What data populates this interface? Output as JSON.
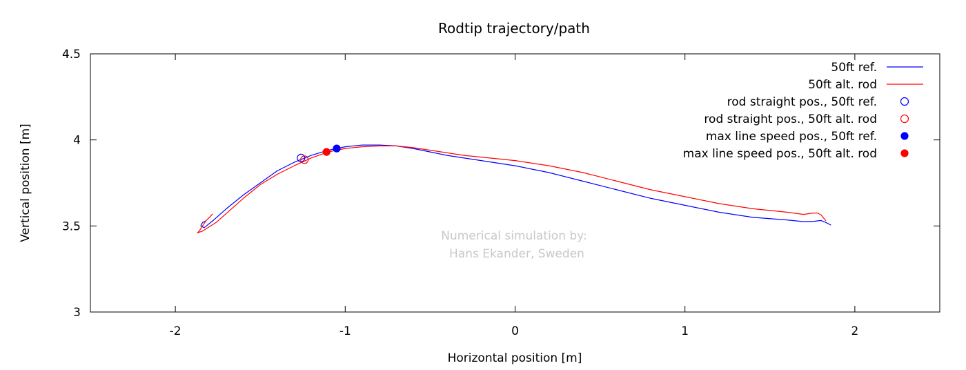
{
  "chart_data": {
    "type": "line",
    "title": "Rodtip trajectory/path",
    "xlabel": "Horizontal position [m]",
    "ylabel": "Vertical position [m]",
    "xlim": [
      -2.5,
      2.5
    ],
    "ylim": [
      3,
      4.5
    ],
    "xticks": [
      -2,
      -1,
      0,
      1,
      2
    ],
    "yticks": [
      3,
      3.5,
      4,
      4.5
    ],
    "xtick_labels": [
      "-2",
      "-1",
      "0",
      "1",
      "2"
    ],
    "ytick_labels": [
      "3",
      "3.5",
      "4",
      "4.5"
    ],
    "grid": false,
    "legend_position": "top-right",
    "watermark": [
      "Numerical simulation by:",
      "Hans Ekander, Sweden"
    ],
    "series": [
      {
        "name": "50ft ref.",
        "kind": "line",
        "color": "#0000ff",
        "points": [
          [
            -1.82,
            3.53
          ],
          [
            -1.84,
            3.52
          ],
          [
            -1.85,
            3.5
          ],
          [
            -1.83,
            3.49
          ],
          [
            -1.78,
            3.53
          ],
          [
            -1.7,
            3.6
          ],
          [
            -1.6,
            3.68
          ],
          [
            -1.5,
            3.75
          ],
          [
            -1.4,
            3.82
          ],
          [
            -1.3,
            3.87
          ],
          [
            -1.2,
            3.91
          ],
          [
            -1.1,
            3.94
          ],
          [
            -1.0,
            3.96
          ],
          [
            -0.9,
            3.97
          ],
          [
            -0.8,
            3.97
          ],
          [
            -0.7,
            3.965
          ],
          [
            -0.6,
            3.95
          ],
          [
            -0.5,
            3.93
          ],
          [
            -0.4,
            3.91
          ],
          [
            -0.2,
            3.88
          ],
          [
            0.0,
            3.85
          ],
          [
            0.2,
            3.81
          ],
          [
            0.4,
            3.76
          ],
          [
            0.6,
            3.71
          ],
          [
            0.8,
            3.66
          ],
          [
            1.0,
            3.62
          ],
          [
            1.2,
            3.58
          ],
          [
            1.4,
            3.55
          ],
          [
            1.6,
            3.535
          ],
          [
            1.7,
            3.525
          ],
          [
            1.76,
            3.527
          ],
          [
            1.8,
            3.532
          ],
          [
            1.83,
            3.52
          ],
          [
            1.86,
            3.505
          ]
        ]
      },
      {
        "name": "50ft alt. rod",
        "kind": "line",
        "color": "#ff0000",
        "points": [
          [
            -1.78,
            3.57
          ],
          [
            -1.82,
            3.53
          ],
          [
            -1.86,
            3.47
          ],
          [
            -1.87,
            3.46
          ],
          [
            -1.84,
            3.47
          ],
          [
            -1.76,
            3.52
          ],
          [
            -1.68,
            3.59
          ],
          [
            -1.6,
            3.66
          ],
          [
            -1.5,
            3.74
          ],
          [
            -1.4,
            3.8
          ],
          [
            -1.3,
            3.85
          ],
          [
            -1.2,
            3.895
          ],
          [
            -1.1,
            3.93
          ],
          [
            -1.0,
            3.95
          ],
          [
            -0.9,
            3.96
          ],
          [
            -0.8,
            3.965
          ],
          [
            -0.7,
            3.965
          ],
          [
            -0.6,
            3.955
          ],
          [
            -0.5,
            3.94
          ],
          [
            -0.3,
            3.91
          ],
          [
            -0.1,
            3.89
          ],
          [
            0.0,
            3.88
          ],
          [
            0.2,
            3.85
          ],
          [
            0.4,
            3.81
          ],
          [
            0.6,
            3.76
          ],
          [
            0.8,
            3.71
          ],
          [
            1.0,
            3.67
          ],
          [
            1.2,
            3.63
          ],
          [
            1.4,
            3.6
          ],
          [
            1.6,
            3.58
          ],
          [
            1.7,
            3.567
          ],
          [
            1.75,
            3.575
          ],
          [
            1.78,
            3.575
          ],
          [
            1.8,
            3.565
          ],
          [
            1.83,
            3.53
          ]
        ]
      },
      {
        "name": "rod straight pos., 50ft ref.",
        "kind": "marker",
        "marker": "open-circle",
        "color": "#0000ff",
        "points": [
          [
            -1.26,
            3.895
          ]
        ]
      },
      {
        "name": "rod straight pos., 50ft alt. rod",
        "kind": "marker",
        "marker": "open-circle",
        "color": "#ff0000",
        "points": [
          [
            -1.24,
            3.885
          ]
        ]
      },
      {
        "name": "max line speed pos., 50ft ref.",
        "kind": "marker",
        "marker": "filled-circle",
        "color": "#0000ff",
        "points": [
          [
            -1.05,
            3.95
          ]
        ]
      },
      {
        "name": "max line speed pos., 50ft alt. rod",
        "kind": "marker",
        "marker": "filled-circle",
        "color": "#ff0000",
        "points": [
          [
            -1.11,
            3.93
          ]
        ]
      }
    ]
  }
}
